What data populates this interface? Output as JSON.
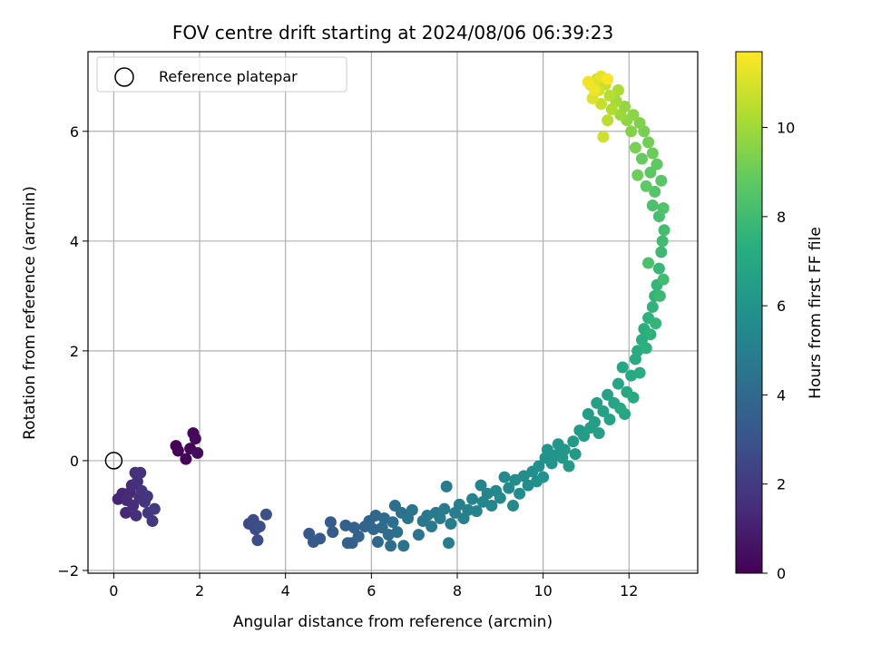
{
  "chart_data": {
    "type": "scatter",
    "title": "FOV centre drift starting at 2024/08/06 06:39:23",
    "xlabel": "Angular distance from reference (arcmin)",
    "ylabel": "Rotation from reference (arcmin)",
    "colorbar_label": "Hours from first FF file",
    "xlim": [
      -0.6,
      13.6
    ],
    "ylim": [
      -2.05,
      7.45
    ],
    "xticks": [
      0,
      2,
      4,
      6,
      8,
      10,
      12
    ],
    "yticks": [
      -2,
      0,
      2,
      4,
      6
    ],
    "colorbar_range": [
      0,
      11.7
    ],
    "colorbar_ticks": [
      0,
      2,
      4,
      6,
      8,
      10
    ],
    "colormap": "viridis",
    "grid": true,
    "legend": {
      "label": "Reference platepar",
      "placement": "top-left",
      "marker": "open-circle"
    },
    "reference_point": {
      "x": 0,
      "y": 0
    },
    "points": [
      {
        "x": 1.45,
        "y": 0.27,
        "t": 0.05
      },
      {
        "x": 1.5,
        "y": 0.18,
        "t": 0.1
      },
      {
        "x": 1.68,
        "y": 0.03,
        "t": 0.15
      },
      {
        "x": 1.78,
        "y": 0.22,
        "t": 0.2
      },
      {
        "x": 1.85,
        "y": 0.5,
        "t": 0.25
      },
      {
        "x": 1.9,
        "y": 0.4,
        "t": 0.3
      },
      {
        "x": 1.95,
        "y": 0.14,
        "t": 0.35
      },
      {
        "x": 0.1,
        "y": -0.7,
        "t": 1.2
      },
      {
        "x": 0.2,
        "y": -0.6,
        "t": 1.25
      },
      {
        "x": 0.28,
        "y": -0.95,
        "t": 1.3
      },
      {
        "x": 0.3,
        "y": -0.72,
        "t": 1.35
      },
      {
        "x": 0.38,
        "y": -0.58,
        "t": 1.4
      },
      {
        "x": 0.42,
        "y": -0.45,
        "t": 1.45
      },
      {
        "x": 0.45,
        "y": -0.82,
        "t": 1.5
      },
      {
        "x": 0.5,
        "y": -0.22,
        "t": 1.55
      },
      {
        "x": 0.52,
        "y": -1.0,
        "t": 1.6
      },
      {
        "x": 0.55,
        "y": -0.38,
        "t": 1.6
      },
      {
        "x": 0.6,
        "y": -0.68,
        "t": 1.65
      },
      {
        "x": 0.62,
        "y": -0.22,
        "t": 1.7
      },
      {
        "x": 0.65,
        "y": -0.55,
        "t": 1.75
      },
      {
        "x": 0.72,
        "y": -0.75,
        "t": 1.8
      },
      {
        "x": 0.78,
        "y": -0.65,
        "t": 1.85
      },
      {
        "x": 0.8,
        "y": -0.95,
        "t": 1.9
      },
      {
        "x": 0.9,
        "y": -1.1,
        "t": 1.95
      },
      {
        "x": 0.95,
        "y": -0.88,
        "t": 2.0
      },
      {
        "x": 3.15,
        "y": -1.15,
        "t": 2.6
      },
      {
        "x": 3.25,
        "y": -1.08,
        "t": 2.65
      },
      {
        "x": 3.3,
        "y": -1.25,
        "t": 2.7
      },
      {
        "x": 3.35,
        "y": -1.45,
        "t": 2.75
      },
      {
        "x": 3.4,
        "y": -1.2,
        "t": 2.8
      },
      {
        "x": 3.55,
        "y": -0.98,
        "t": 2.85
      },
      {
        "x": 4.55,
        "y": -1.33,
        "t": 3.2
      },
      {
        "x": 4.65,
        "y": -1.48,
        "t": 3.25
      },
      {
        "x": 4.8,
        "y": -1.42,
        "t": 3.3
      },
      {
        "x": 5.05,
        "y": -1.12,
        "t": 3.35
      },
      {
        "x": 5.1,
        "y": -1.3,
        "t": 3.4
      },
      {
        "x": 5.4,
        "y": -1.18,
        "t": 3.5
      },
      {
        "x": 5.45,
        "y": -1.5,
        "t": 3.55
      },
      {
        "x": 5.55,
        "y": -1.5,
        "t": 3.6
      },
      {
        "x": 5.6,
        "y": -1.22,
        "t": 3.65
      },
      {
        "x": 5.7,
        "y": -1.38,
        "t": 3.7
      },
      {
        "x": 5.85,
        "y": -1.2,
        "t": 3.75
      },
      {
        "x": 5.95,
        "y": -1.1,
        "t": 3.8
      },
      {
        "x": 6.05,
        "y": -1.25,
        "t": 3.85
      },
      {
        "x": 6.1,
        "y": -1.0,
        "t": 3.9
      },
      {
        "x": 6.15,
        "y": -1.48,
        "t": 3.95
      },
      {
        "x": 6.25,
        "y": -1.22,
        "t": 4.0
      },
      {
        "x": 6.3,
        "y": -1.05,
        "t": 4.05
      },
      {
        "x": 6.4,
        "y": -1.35,
        "t": 4.1
      },
      {
        "x": 6.45,
        "y": -1.55,
        "t": 4.15
      },
      {
        "x": 6.5,
        "y": -1.12,
        "t": 4.2
      },
      {
        "x": 6.55,
        "y": -0.82,
        "t": 4.25
      },
      {
        "x": 6.6,
        "y": -1.3,
        "t": 4.3
      },
      {
        "x": 6.7,
        "y": -0.95,
        "t": 4.35
      },
      {
        "x": 6.75,
        "y": -1.55,
        "t": 4.4
      },
      {
        "x": 6.85,
        "y": -1.05,
        "t": 4.45
      },
      {
        "x": 6.95,
        "y": -0.9,
        "t": 4.5
      },
      {
        "x": 7.1,
        "y": -1.35,
        "t": 4.55
      },
      {
        "x": 7.2,
        "y": -1.1,
        "t": 4.6
      },
      {
        "x": 7.3,
        "y": -1.0,
        "t": 4.65
      },
      {
        "x": 7.4,
        "y": -1.2,
        "t": 4.7
      },
      {
        "x": 7.5,
        "y": -0.95,
        "t": 4.75
      },
      {
        "x": 7.6,
        "y": -1.05,
        "t": 4.8
      },
      {
        "x": 7.7,
        "y": -0.88,
        "t": 4.85
      },
      {
        "x": 7.75,
        "y": -0.47,
        "t": 4.85
      },
      {
        "x": 7.8,
        "y": -1.5,
        "t": 4.9
      },
      {
        "x": 7.85,
        "y": -1.15,
        "t": 4.9
      },
      {
        "x": 7.95,
        "y": -0.95,
        "t": 4.95
      },
      {
        "x": 8.05,
        "y": -0.8,
        "t": 5.0
      },
      {
        "x": 8.15,
        "y": -1.05,
        "t": 5.05
      },
      {
        "x": 8.25,
        "y": -0.9,
        "t": 5.1
      },
      {
        "x": 8.35,
        "y": -0.7,
        "t": 5.15
      },
      {
        "x": 8.45,
        "y": -0.92,
        "t": 5.2
      },
      {
        "x": 8.55,
        "y": -0.45,
        "t": 5.25
      },
      {
        "x": 8.6,
        "y": -0.75,
        "t": 5.25
      },
      {
        "x": 8.7,
        "y": -0.6,
        "t": 5.3
      },
      {
        "x": 8.8,
        "y": -0.82,
        "t": 5.35
      },
      {
        "x": 8.9,
        "y": -0.55,
        "t": 5.4
      },
      {
        "x": 9.0,
        "y": -0.68,
        "t": 5.45
      },
      {
        "x": 9.1,
        "y": -0.3,
        "t": 5.5
      },
      {
        "x": 9.2,
        "y": -0.5,
        "t": 5.5
      },
      {
        "x": 9.3,
        "y": -0.82,
        "t": 5.55
      },
      {
        "x": 9.35,
        "y": -0.35,
        "t": 5.6
      },
      {
        "x": 9.45,
        "y": -0.6,
        "t": 5.6
      },
      {
        "x": 9.55,
        "y": -0.28,
        "t": 5.65
      },
      {
        "x": 9.65,
        "y": -0.45,
        "t": 5.7
      },
      {
        "x": 9.75,
        "y": -0.2,
        "t": 5.75
      },
      {
        "x": 9.85,
        "y": -0.38,
        "t": 5.8
      },
      {
        "x": 9.9,
        "y": -0.1,
        "t": 5.85
      },
      {
        "x": 10.0,
        "y": -0.3,
        "t": 5.9
      },
      {
        "x": 10.05,
        "y": 0.05,
        "t": 5.95
      },
      {
        "x": 10.1,
        "y": 0.2,
        "t": 6.0
      },
      {
        "x": 10.2,
        "y": -0.05,
        "t": 6.0
      },
      {
        "x": 10.3,
        "y": 0.1,
        "t": 6.05
      },
      {
        "x": 10.35,
        "y": 0.3,
        "t": 6.1
      },
      {
        "x": 10.45,
        "y": 0.05,
        "t": 6.15
      },
      {
        "x": 10.5,
        "y": 0.2,
        "t": 6.2
      },
      {
        "x": 10.6,
        "y": -0.1,
        "t": 6.25
      },
      {
        "x": 10.7,
        "y": 0.35,
        "t": 6.3
      },
      {
        "x": 10.75,
        "y": 0.12,
        "t": 6.3
      },
      {
        "x": 10.85,
        "y": 0.55,
        "t": 6.35
      },
      {
        "x": 10.95,
        "y": 0.45,
        "t": 6.4
      },
      {
        "x": 11.05,
        "y": 0.85,
        "t": 6.45
      },
      {
        "x": 11.1,
        "y": 0.6,
        "t": 6.5
      },
      {
        "x": 11.2,
        "y": 0.7,
        "t": 6.55
      },
      {
        "x": 11.25,
        "y": 1.05,
        "t": 6.6
      },
      {
        "x": 11.3,
        "y": 0.5,
        "t": 6.6
      },
      {
        "x": 11.4,
        "y": 0.9,
        "t": 6.65
      },
      {
        "x": 11.5,
        "y": 1.2,
        "t": 6.7
      },
      {
        "x": 11.55,
        "y": 0.75,
        "t": 6.75
      },
      {
        "x": 11.65,
        "y": 1.05,
        "t": 6.8
      },
      {
        "x": 11.75,
        "y": 1.4,
        "t": 6.85
      },
      {
        "x": 11.8,
        "y": 0.95,
        "t": 6.9
      },
      {
        "x": 11.85,
        "y": 1.7,
        "t": 6.95
      },
      {
        "x": 11.9,
        "y": 0.85,
        "t": 6.95
      },
      {
        "x": 11.95,
        "y": 1.25,
        "t": 7.0
      },
      {
        "x": 12.05,
        "y": 1.55,
        "t": 7.05
      },
      {
        "x": 12.1,
        "y": 1.15,
        "t": 7.1
      },
      {
        "x": 12.15,
        "y": 1.85,
        "t": 7.15
      },
      {
        "x": 12.2,
        "y": 2.0,
        "t": 7.2
      },
      {
        "x": 12.25,
        "y": 1.6,
        "t": 7.25
      },
      {
        "x": 12.3,
        "y": 2.2,
        "t": 7.3
      },
      {
        "x": 12.35,
        "y": 2.4,
        "t": 7.35
      },
      {
        "x": 12.4,
        "y": 2.05,
        "t": 7.4
      },
      {
        "x": 12.45,
        "y": 2.6,
        "t": 7.45
      },
      {
        "x": 12.5,
        "y": 2.3,
        "t": 7.5
      },
      {
        "x": 12.55,
        "y": 2.8,
        "t": 7.55
      },
      {
        "x": 12.6,
        "y": 3.0,
        "t": 7.6
      },
      {
        "x": 12.62,
        "y": 2.5,
        "t": 7.65
      },
      {
        "x": 12.65,
        "y": 3.2,
        "t": 7.7
      },
      {
        "x": 12.7,
        "y": 3.5,
        "t": 7.8
      },
      {
        "x": 12.72,
        "y": 3.0,
        "t": 7.85
      },
      {
        "x": 12.75,
        "y": 3.8,
        "t": 7.9
      },
      {
        "x": 12.78,
        "y": 4.0,
        "t": 8.0
      },
      {
        "x": 12.8,
        "y": 3.3,
        "t": 8.05
      },
      {
        "x": 12.82,
        "y": 4.2,
        "t": 8.1
      },
      {
        "x": 12.7,
        "y": 4.45,
        "t": 8.2
      },
      {
        "x": 12.55,
        "y": 4.65,
        "t": 8.3
      },
      {
        "x": 12.45,
        "y": 3.6,
        "t": 8.3
      },
      {
        "x": 12.8,
        "y": 4.6,
        "t": 8.4
      },
      {
        "x": 12.6,
        "y": 4.9,
        "t": 8.5
      },
      {
        "x": 12.75,
        "y": 5.1,
        "t": 8.6
      },
      {
        "x": 12.5,
        "y": 5.25,
        "t": 8.7
      },
      {
        "x": 12.4,
        "y": 5.0,
        "t": 8.75
      },
      {
        "x": 12.65,
        "y": 5.4,
        "t": 8.8
      },
      {
        "x": 12.3,
        "y": 5.5,
        "t": 8.9
      },
      {
        "x": 12.55,
        "y": 5.6,
        "t": 9.0
      },
      {
        "x": 12.2,
        "y": 5.2,
        "t": 9.05
      },
      {
        "x": 12.45,
        "y": 5.8,
        "t": 9.1
      },
      {
        "x": 12.35,
        "y": 6.0,
        "t": 9.2
      },
      {
        "x": 12.15,
        "y": 5.7,
        "t": 9.3
      },
      {
        "x": 12.25,
        "y": 6.15,
        "t": 9.4
      },
      {
        "x": 12.05,
        "y": 6.0,
        "t": 9.5
      },
      {
        "x": 12.1,
        "y": 6.3,
        "t": 9.6
      },
      {
        "x": 11.95,
        "y": 6.2,
        "t": 9.7
      },
      {
        "x": 11.9,
        "y": 6.45,
        "t": 9.8
      },
      {
        "x": 11.8,
        "y": 6.3,
        "t": 9.9
      },
      {
        "x": 11.7,
        "y": 6.55,
        "t": 10.0
      },
      {
        "x": 11.75,
        "y": 6.75,
        "t": 10.2
      },
      {
        "x": 11.6,
        "y": 6.4,
        "t": 10.3
      },
      {
        "x": 11.55,
        "y": 6.65,
        "t": 10.4
      },
      {
        "x": 11.5,
        "y": 6.2,
        "t": 10.5
      },
      {
        "x": 11.45,
        "y": 6.85,
        "t": 10.6
      },
      {
        "x": 11.35,
        "y": 6.5,
        "t": 10.7
      },
      {
        "x": 11.4,
        "y": 5.9,
        "t": 10.8
      },
      {
        "x": 11.3,
        "y": 6.75,
        "t": 10.9
      },
      {
        "x": 11.25,
        "y": 6.95,
        "t": 11.0
      },
      {
        "x": 11.15,
        "y": 6.6,
        "t": 11.1
      },
      {
        "x": 11.1,
        "y": 6.85,
        "t": 11.2
      },
      {
        "x": 11.35,
        "y": 7.0,
        "t": 11.3
      },
      {
        "x": 11.2,
        "y": 6.75,
        "t": 11.4
      },
      {
        "x": 11.05,
        "y": 6.9,
        "t": 11.5
      },
      {
        "x": 11.5,
        "y": 6.95,
        "t": 11.6
      }
    ]
  }
}
